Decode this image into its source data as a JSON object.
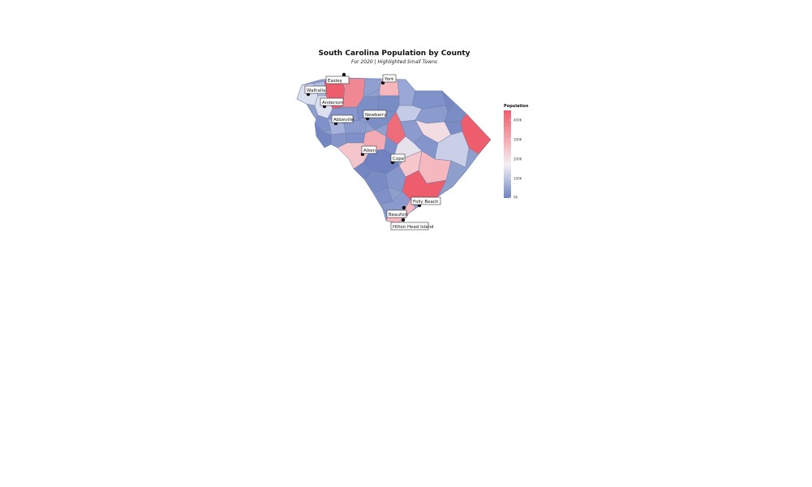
{
  "title": "South Carolina Population by County",
  "subtitle": "For 2020 | Highlighted Small Towns",
  "legend": {
    "title": "Population",
    "ticks": [
      "400K",
      "300K",
      "200K",
      "100K",
      "0K"
    ],
    "colors": {
      "high": "#ee5d6c",
      "mid": "#f2f0f4",
      "low": "#6f84bf"
    }
  },
  "towns": [
    {
      "name": "Easley"
    },
    {
      "name": "York"
    },
    {
      "name": "Walhalla"
    },
    {
      "name": "Anderson"
    },
    {
      "name": "Abbeville"
    },
    {
      "name": "Newberry"
    },
    {
      "name": "Aiken"
    },
    {
      "name": "Cope"
    },
    {
      "name": "Folly Beach"
    },
    {
      "name": "Beaufort"
    },
    {
      "name": "Hilton Head Island"
    }
  ]
}
